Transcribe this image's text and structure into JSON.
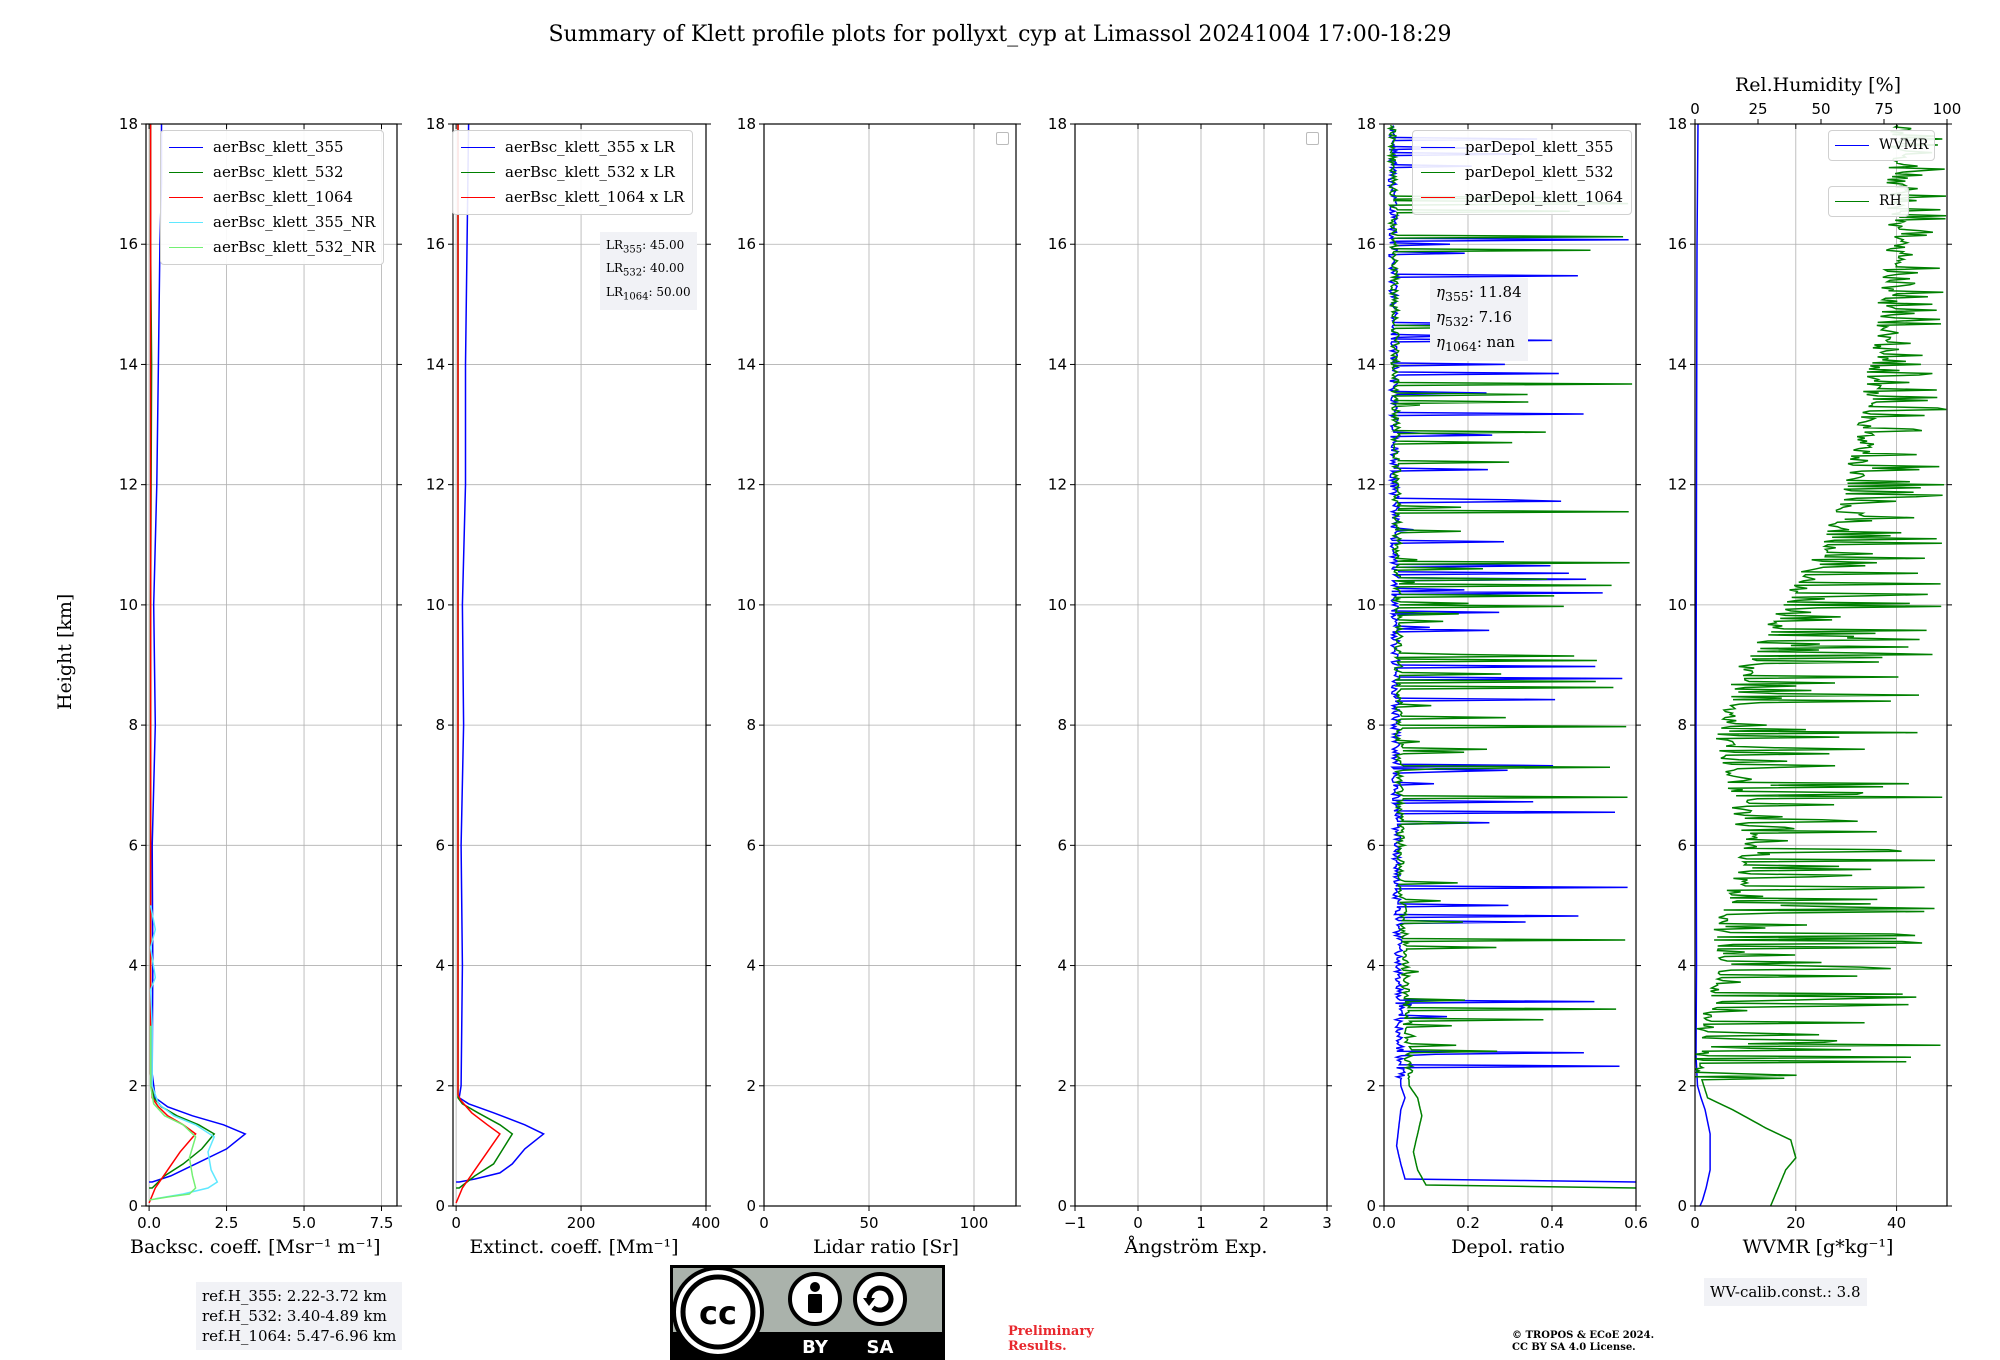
{
  "title": "Summary of Klett profile plots for pollyxt_cyp at Limassol 20241004 17:00-18:29",
  "ylabel": "Height [km]",
  "colors": {
    "b355": "#0000ff",
    "b532": "#008000",
    "b1064": "#ff0000",
    "nr355": "#5fe8ff",
    "nr532": "#73f073",
    "rh": "#008000",
    "wvmr": "#0000ff"
  },
  "ref_heights": [
    "ref.H_355: 2.22-3.72 km",
    "ref.H_532: 3.40-4.89 km",
    "ref.H_1064: 5.47-6.96 km"
  ],
  "lidar_ratio_box": [
    {
      "name": "LR",
      "sub": "355",
      "value": ": 45.00"
    },
    {
      "name": "LR",
      "sub": "532",
      "value": ": 40.00"
    },
    {
      "name": "LR",
      "sub": "1064",
      "value": ": 50.00"
    }
  ],
  "eta_box": [
    {
      "name": "η",
      "sub": "355",
      "value": ": 11.84"
    },
    {
      "name": "η",
      "sub": "532",
      "value": ": 7.16"
    },
    {
      "name": "η",
      "sub": "1064",
      "value": ": nan"
    }
  ],
  "wv_calib": "WV-calib.const.: 3.8",
  "preliminary": [
    "Preliminary",
    "Results."
  ],
  "copyright": [
    "© TROPOS & ECoE 2024.",
    "CC BY SA 4.0 License."
  ],
  "cc_badge": {
    "by": "BY",
    "sa": "SA",
    "cc": "cc"
  },
  "chart_data": [
    {
      "type": "line",
      "name": "backscatter",
      "xlabel": "Backsc. coeff. [Msr⁻¹ m⁻¹]",
      "ylabel": "Height [km]",
      "xlim": [
        -0.1,
        8.0
      ],
      "ylim": [
        0,
        18
      ],
      "xticks": [
        0.0,
        2.5,
        5.0,
        7.5
      ],
      "xticklabels": [
        "0.0",
        "2.5",
        "5.0",
        "7.5"
      ],
      "yticks": [
        0,
        2,
        4,
        6,
        8,
        10,
        12,
        14,
        16,
        18
      ],
      "grid": true,
      "legend_position": "top-right",
      "series": [
        {
          "name": "aerBsc_klett_355",
          "color_key": "b355",
          "x": [
            0.0,
            0.1,
            0.7,
            1.5,
            2.5,
            3.1,
            2.4,
            1.4,
            0.6,
            0.2,
            0.1,
            0.12,
            0.1,
            0.2,
            0.15,
            0.25,
            0.3,
            0.35,
            0.4,
            0.4
          ],
          "y": [
            0.4,
            0.4,
            0.5,
            0.7,
            0.95,
            1.2,
            1.35,
            1.5,
            1.65,
            1.8,
            2.2,
            4,
            6,
            8,
            10,
            12,
            14,
            16,
            17,
            18
          ]
        },
        {
          "name": "aerBsc_klett_532",
          "color_key": "b532",
          "x": [
            0.0,
            0.1,
            0.5,
            1.1,
            1.7,
            2.1,
            1.6,
            0.9,
            0.4,
            0.15,
            0.05,
            0.05,
            0.05,
            0.08,
            0.05,
            0.05
          ],
          "y": [
            0.3,
            0.3,
            0.5,
            0.7,
            0.95,
            1.2,
            1.35,
            1.5,
            1.65,
            1.8,
            2.2,
            6,
            10,
            14,
            16,
            18
          ]
        },
        {
          "name": "aerBsc_klett_1064",
          "color_key": "b1064",
          "x": [
            0.0,
            0.2,
            0.6,
            1.0,
            1.5,
            1.1,
            0.6,
            0.3,
            0.1,
            0.05,
            0.05,
            0.05
          ],
          "y": [
            0.05,
            0.3,
            0.6,
            0.9,
            1.2,
            1.35,
            1.5,
            1.65,
            1.8,
            2.2,
            10,
            18
          ]
        },
        {
          "name": "aerBsc_klett_355_NR",
          "color_key": "nr355",
          "x": [
            0.2,
            1.1,
            1.9,
            2.2,
            2.0,
            1.9,
            2.1,
            1.5,
            0.8,
            0.3,
            0.1,
            0.1,
            0.05,
            0.2,
            0.05,
            0.2,
            0.05
          ],
          "y": [
            0.12,
            0.2,
            0.3,
            0.4,
            0.6,
            0.9,
            1.15,
            1.35,
            1.5,
            1.7,
            2.0,
            3.0,
            3.6,
            3.8,
            4.3,
            4.6,
            5.0
          ]
        },
        {
          "name": "aerBsc_klett_532_NR",
          "color_key": "nr532",
          "x": [
            0.0,
            0.6,
            1.3,
            1.5,
            1.4,
            1.3,
            1.5,
            1.1,
            0.5,
            0.15,
            0.05,
            0.05
          ],
          "y": [
            0.1,
            0.15,
            0.2,
            0.3,
            0.5,
            0.8,
            1.15,
            1.35,
            1.5,
            1.7,
            2.0,
            3.0
          ]
        }
      ]
    },
    {
      "type": "line",
      "name": "extinction",
      "xlabel": "Extinct. coeff. [Mm⁻¹]",
      "ylabel": "Height [km]",
      "xlim": [
        -5,
        400
      ],
      "ylim": [
        0,
        18
      ],
      "xticks": [
        0,
        200,
        400
      ],
      "xticklabels": [
        "0",
        "200",
        "400"
      ],
      "yticks": [
        0,
        2,
        4,
        6,
        8,
        10,
        12,
        14,
        16,
        18
      ],
      "grid": true,
      "legend_position": "top-right",
      "series": [
        {
          "name": "aerBsc_klett_355 x LR",
          "color_key": "b355",
          "x": [
            0,
            5,
            30,
            70,
            90,
            110,
            140,
            110,
            60,
            20,
            5,
            8,
            10,
            8,
            12,
            10,
            15,
            15,
            20
          ],
          "y": [
            0.4,
            0.4,
            0.45,
            0.55,
            0.7,
            0.95,
            1.2,
            1.35,
            1.55,
            1.7,
            1.8,
            2,
            4,
            6,
            8,
            10,
            12,
            14,
            18
          ]
        },
        {
          "name": "aerBsc_klett_532 x LR",
          "color_key": "b532",
          "x": [
            0,
            5,
            30,
            60,
            75,
            90,
            70,
            35,
            10,
            3,
            3,
            3
          ],
          "y": [
            0.3,
            0.3,
            0.5,
            0.7,
            0.95,
            1.2,
            1.35,
            1.55,
            1.7,
            1.8,
            6,
            18
          ]
        },
        {
          "name": "aerBsc_klett_1064 x LR",
          "color_key": "b1064",
          "x": [
            0,
            10,
            30,
            50,
            70,
            50,
            25,
            8,
            3,
            3
          ],
          "y": [
            0.05,
            0.3,
            0.6,
            0.9,
            1.2,
            1.35,
            1.55,
            1.75,
            1.85,
            18
          ]
        }
      ]
    },
    {
      "type": "line",
      "name": "lidar_ratio",
      "xlabel": "Lidar ratio [Sr]",
      "xlim": [
        0,
        120
      ],
      "ylim": [
        0,
        18
      ],
      "xticks": [
        0,
        50,
        100
      ],
      "xticklabels": [
        "0",
        "50",
        "100"
      ],
      "yticks": [
        0,
        2,
        4,
        6,
        8,
        10,
        12,
        14,
        16,
        18
      ],
      "grid": true,
      "series": []
    },
    {
      "type": "line",
      "name": "angstrom",
      "xlabel": "Ångström Exp.",
      "xlim": [
        -1,
        3
      ],
      "ylim": [
        0,
        18
      ],
      "xticks": [
        -1,
        0,
        1,
        2,
        3
      ],
      "xticklabels": [
        "−1",
        "0",
        "1",
        "2",
        "3"
      ],
      "yticks": [
        0,
        2,
        4,
        6,
        8,
        10,
        12,
        14,
        16,
        18
      ],
      "grid": true,
      "series": []
    },
    {
      "type": "line",
      "name": "depolarization",
      "xlabel": "Depol. ratio",
      "xlim": [
        0,
        0.6
      ],
      "ylim": [
        0,
        18
      ],
      "xticks": [
        0.0,
        0.2,
        0.4,
        0.6
      ],
      "xticklabels": [
        "0.0",
        "0.2",
        "0.4",
        "0.6"
      ],
      "yticks": [
        0,
        2,
        4,
        6,
        8,
        10,
        12,
        14,
        16,
        18
      ],
      "grid": true,
      "legend_position": "top-right",
      "series": [
        {
          "name": "parDepol_klett_355",
          "color_key": "b355",
          "noise": true,
          "x": [
            0.6,
            0.05,
            0.04,
            0.03,
            0.035,
            0.04,
            0.05,
            0.04,
            0.03,
            0.02
          ],
          "y": [
            0.4,
            0.45,
            0.7,
            1.0,
            1.3,
            1.6,
            1.8,
            2.0,
            6,
            18
          ]
        },
        {
          "name": "parDepol_klett_532",
          "color_key": "b532",
          "noise": true,
          "x": [
            0.6,
            0.1,
            0.08,
            0.07,
            0.08,
            0.09,
            0.08,
            0.06,
            0.04,
            0.02
          ],
          "y": [
            0.3,
            0.35,
            0.6,
            0.9,
            1.2,
            1.5,
            1.8,
            2.0,
            6,
            18
          ]
        },
        {
          "name": "parDepol_klett_1064",
          "color_key": "b1064",
          "x": [],
          "y": []
        }
      ]
    },
    {
      "type": "line",
      "name": "wvmr_rh",
      "xlabel": "WVMR [g*kg⁻¹]",
      "x2label": "Rel.Humidity [%]",
      "xlim": [
        0,
        50
      ],
      "x2lim": [
        0,
        100
      ],
      "ylim": [
        0,
        18
      ],
      "xticks": [
        0,
        20,
        40
      ],
      "xticklabels": [
        "0",
        "20",
        "40"
      ],
      "x2ticks": [
        0,
        25,
        50,
        75,
        100
      ],
      "x2ticklabels": [
        "0",
        "25",
        "50",
        "75",
        "100"
      ],
      "yticks": [
        0,
        2,
        4,
        6,
        8,
        10,
        12,
        14,
        16,
        18
      ],
      "grid": true,
      "legend_position": "top-right",
      "series": [
        {
          "name": "WVMR",
          "color_key": "wvmr",
          "axis": "x",
          "x": [
            1,
            1.5,
            2.2,
            3,
            3,
            2.5,
            2,
            1.2,
            0.5,
            0.2,
            0.3,
            0.2,
            0.3,
            0.4,
            0.6
          ],
          "y": [
            0.0,
            0.1,
            0.3,
            0.6,
            1.2,
            1.4,
            1.6,
            1.8,
            2.0,
            2.5,
            4,
            8,
            12,
            16,
            18
          ]
        },
        {
          "name": "RH",
          "color_key": "rh",
          "axis": "x2",
          "noise": true,
          "x": [
            30,
            32,
            34,
            36,
            40,
            38,
            28,
            15,
            5,
            2,
            3,
            6,
            8,
            12,
            10,
            16,
            22,
            18,
            15,
            12,
            15,
            20,
            30,
            40,
            50,
            60,
            65,
            70,
            75,
            80,
            80
          ],
          "y": [
            0.0,
            0.2,
            0.4,
            0.6,
            0.8,
            1.1,
            1.3,
            1.6,
            1.8,
            2.2,
            2.8,
            3.2,
            3.6,
            4.2,
            4.6,
            5.2,
            6.0,
            6.6,
            7.2,
            7.8,
            8.4,
            9.0,
            9.6,
            10.2,
            10.8,
            11.6,
            12.4,
            13.4,
            14.6,
            16.0,
            18
          ]
        }
      ]
    }
  ]
}
